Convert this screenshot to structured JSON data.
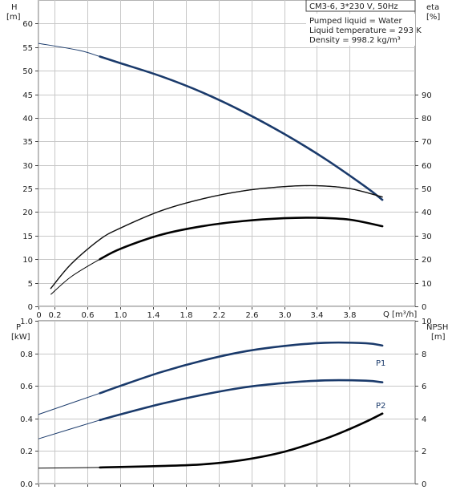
{
  "chart_data": [
    {
      "type": "line",
      "header": "CM3-6, 3*230 V, 50Hz",
      "info_lines": [
        "Pumped liquid = Water",
        "Liquid temperature = 293 K",
        "Density = 998.2 kg/m³"
      ],
      "left_axis_label": [
        "H",
        "[m]"
      ],
      "right_axis_label": [
        "eta",
        "[%]"
      ],
      "x_axis_label": "Q [m³/h]",
      "xlim": [
        0,
        4.6
      ],
      "x_ticks": [
        0,
        0.2,
        0.6,
        1.0,
        1.4,
        1.8,
        2.2,
        2.6,
        3.0,
        3.4,
        3.8
      ],
      "x_tick_labels": [
        "0",
        "0.2",
        "0.6",
        "1.0",
        "1.4",
        "1.8",
        "2.2",
        "2.6",
        "3.0",
        "3.4",
        "3.8"
      ],
      "ylim": [
        0,
        65
      ],
      "y_ticks": [
        0,
        5,
        10,
        15,
        20,
        25,
        30,
        35,
        40,
        45,
        50,
        55,
        60
      ],
      "y_tick_labels": [
        "0",
        "5",
        "10",
        "15",
        "20",
        "25",
        "30",
        "35",
        "40",
        "45",
        "50",
        "55",
        "60"
      ],
      "y2lim": [
        0,
        130
      ],
      "y2_ticks": [
        0,
        10,
        20,
        30,
        40,
        50,
        60,
        70,
        80,
        90
      ],
      "y2_tick_labels": [
        "0",
        "10",
        "20",
        "30",
        "40",
        "50",
        "60",
        "70",
        "80",
        "90"
      ],
      "grid": true,
      "series": [
        {
          "key": "head",
          "axis": "left",
          "color": "#1a3a6b",
          "x": [
            0,
            0.5,
            0.75,
            1.0,
            1.5,
            2.0,
            2.5,
            3.0,
            3.5,
            4.0,
            4.2
          ],
          "y": [
            55.8,
            54.3,
            53.0,
            51.6,
            48.8,
            45.4,
            41.3,
            36.6,
            31.3,
            25.3,
            22.6
          ],
          "solid_from": 0.75,
          "solid_to": 4.2
        },
        {
          "key": "curve2",
          "axis": "left",
          "color": "#111111",
          "x": [
            0.15,
            0.4,
            0.75,
            1.0,
            1.5,
            2.0,
            2.5,
            3.0,
            3.4,
            3.8,
            4.2
          ],
          "y": [
            3.8,
            9.0,
            14.2,
            16.6,
            20.3,
            22.8,
            24.5,
            25.4,
            25.6,
            25.0,
            23.2
          ],
          "solid_from": 0.15,
          "solid_to": 4.2
        },
        {
          "key": "curve3",
          "axis": "left",
          "color": "#000000",
          "x": [
            0.15,
            0.4,
            0.75,
            1.0,
            1.5,
            2.0,
            2.5,
            3.0,
            3.4,
            3.8,
            4.2
          ],
          "y": [
            2.5,
            6.3,
            10.0,
            12.2,
            15.2,
            17.0,
            18.1,
            18.7,
            18.8,
            18.4,
            17.0
          ],
          "solid_from": 0.75,
          "solid_to": 4.2
        }
      ]
    },
    {
      "type": "line",
      "left_axis_label": [
        "P",
        "[kW]"
      ],
      "right_axis_label": [
        "NPSH",
        "[m]"
      ],
      "xlim": [
        0,
        4.6
      ],
      "x_ticks": [
        0,
        0.2,
        0.6,
        1.0,
        1.4,
        1.8,
        2.2,
        2.6,
        3.0,
        3.4,
        3.8
      ],
      "ylim": [
        0,
        1.0
      ],
      "y_ticks": [
        0,
        0.2,
        0.4,
        0.6,
        0.8,
        1.0
      ],
      "y_tick_labels": [
        "0.0",
        "0.2",
        "0.4",
        "0.6",
        "0.8",
        "1.0"
      ],
      "y2lim": [
        0,
        10
      ],
      "y2_ticks": [
        0,
        2,
        4,
        6,
        8,
        10
      ],
      "y2_tick_labels": [
        "0",
        "2",
        "4",
        "6",
        "8",
        "10"
      ],
      "grid": true,
      "series": [
        {
          "key": "p1",
          "name": "P1",
          "axis": "left",
          "color": "#1a3a6b",
          "x": [
            0,
            0.75,
            1.0,
            1.5,
            2.0,
            2.5,
            3.0,
            3.5,
            4.0,
            4.2
          ],
          "y": [
            0.425,
            0.555,
            0.6,
            0.685,
            0.755,
            0.81,
            0.845,
            0.865,
            0.862,
            0.848
          ],
          "solid_from": 0.75,
          "solid_to": 4.2
        },
        {
          "key": "p2",
          "name": "P2",
          "axis": "left",
          "color": "#1a3a6b",
          "x": [
            0,
            0.75,
            1.0,
            1.5,
            2.0,
            2.5,
            3.0,
            3.5,
            4.0,
            4.2
          ],
          "y": [
            0.275,
            0.39,
            0.425,
            0.49,
            0.545,
            0.59,
            0.618,
            0.634,
            0.632,
            0.622
          ],
          "solid_from": 0.75,
          "solid_to": 4.2
        },
        {
          "key": "npsh",
          "axis": "right",
          "color": "#000000",
          "x": [
            0,
            0.75,
            1.0,
            1.5,
            2.0,
            2.5,
            3.0,
            3.5,
            3.8,
            4.0,
            4.2
          ],
          "y": [
            0.95,
            0.99,
            1.02,
            1.08,
            1.18,
            1.45,
            1.95,
            2.75,
            3.35,
            3.8,
            4.3
          ],
          "solid_from": 0.75,
          "solid_to": 4.2
        }
      ]
    }
  ]
}
